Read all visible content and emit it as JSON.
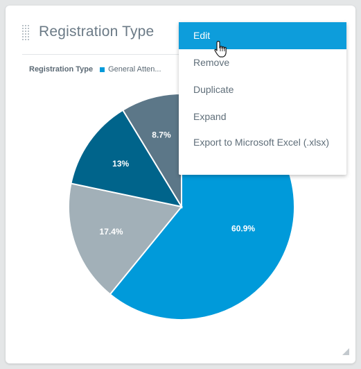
{
  "widget": {
    "title": "Registration Type"
  },
  "legend": {
    "title": "Registration Type",
    "items": [
      {
        "label": "General Atten...",
        "color": "#009ada"
      }
    ]
  },
  "chart_data": {
    "type": "pie",
    "slices": [
      {
        "label": "60.9%",
        "value": 60.9,
        "color": "#009ada"
      },
      {
        "label": "17.4%",
        "value": 17.4,
        "color": "#a2b0b8"
      },
      {
        "label": "13%",
        "value": 13.0,
        "color": "#00648b"
      },
      {
        "label": "8.7%",
        "value": 8.7,
        "color": "#5c7788"
      }
    ],
    "legend_position": "top-left"
  },
  "menu": {
    "items": [
      {
        "label": "Edit",
        "active": true
      },
      {
        "label": "Remove",
        "active": false
      },
      {
        "label": "Duplicate",
        "active": false
      },
      {
        "label": "Expand",
        "active": false
      },
      {
        "label": "Export to Microsoft Excel (.xlsx)",
        "active": false
      }
    ]
  },
  "icons": {
    "drag": "drag-handle-icon",
    "settings": "gear-icon",
    "resize": "resize-handle-icon",
    "cursor": "hand-pointer-cursor-icon"
  },
  "colors": {
    "accent": "#0d9ddb",
    "menu_text": "#5f6e79",
    "title_text": "#6b7a86"
  }
}
